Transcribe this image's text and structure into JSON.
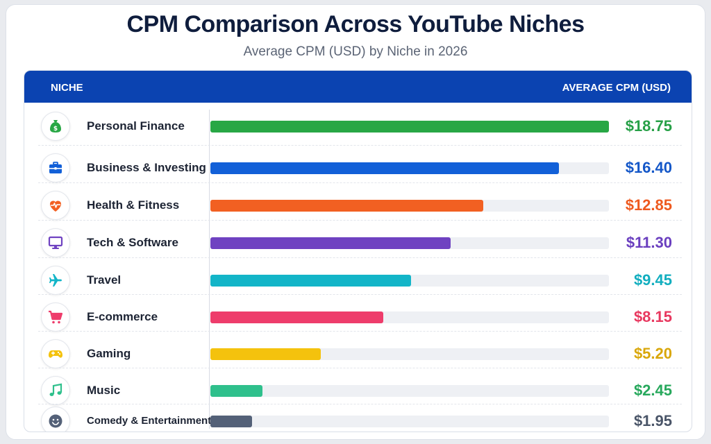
{
  "header": {
    "title": "CPM Comparison Across YouTube Niches",
    "subtitle": "Average CPM (USD) by Niche in 2026"
  },
  "table": {
    "col_niche": "NICHE",
    "col_cpm": "AVERAGE CPM (USD)",
    "header_color": "#0b43b1"
  },
  "chart_data": {
    "type": "bar",
    "title": "CPM Comparison Across YouTube Niches",
    "subtitle": "Average CPM (USD) by Niche in 2026",
    "xlabel": "AVERAGE CPM (USD)",
    "ylabel": "NICHE",
    "orientation": "horizontal",
    "xlim": [
      0,
      18.75
    ],
    "grid": false,
    "categories": [
      "Personal Finance",
      "Business & Investing",
      "Health & Fitness",
      "Tech & Software",
      "Travel",
      "E-commerce",
      "Gaming",
      "Music",
      "Comedy & Entertainment"
    ],
    "values": [
      18.75,
      16.4,
      12.85,
      11.3,
      9.45,
      8.15,
      5.2,
      2.45,
      1.95
    ],
    "value_labels": [
      "$18.75",
      "$16.40",
      "$12.85",
      "$11.30",
      "$9.45",
      "$8.15",
      "$5.20",
      "$2.45",
      "$1.95"
    ],
    "colors": [
      "#28a745",
      "#1260d8",
      "#f26022",
      "#6f42c1",
      "#13b5c8",
      "#ee3c6b",
      "#f4c20d",
      "#2fc08c",
      "#546178"
    ],
    "value_colors": [
      "#27a047",
      "#1457c8",
      "#ee5a1f",
      "#6a3fbf",
      "#12aebf",
      "#e8385f",
      "#d9a70a",
      "#27a85c",
      "#4a5568"
    ],
    "icons": [
      "money-bag-icon",
      "briefcase-icon",
      "heart-pulse-icon",
      "monitor-icon",
      "airplane-icon",
      "shopping-cart-icon",
      "gamepad-icon",
      "music-note-icon",
      "smiley-icon"
    ]
  }
}
